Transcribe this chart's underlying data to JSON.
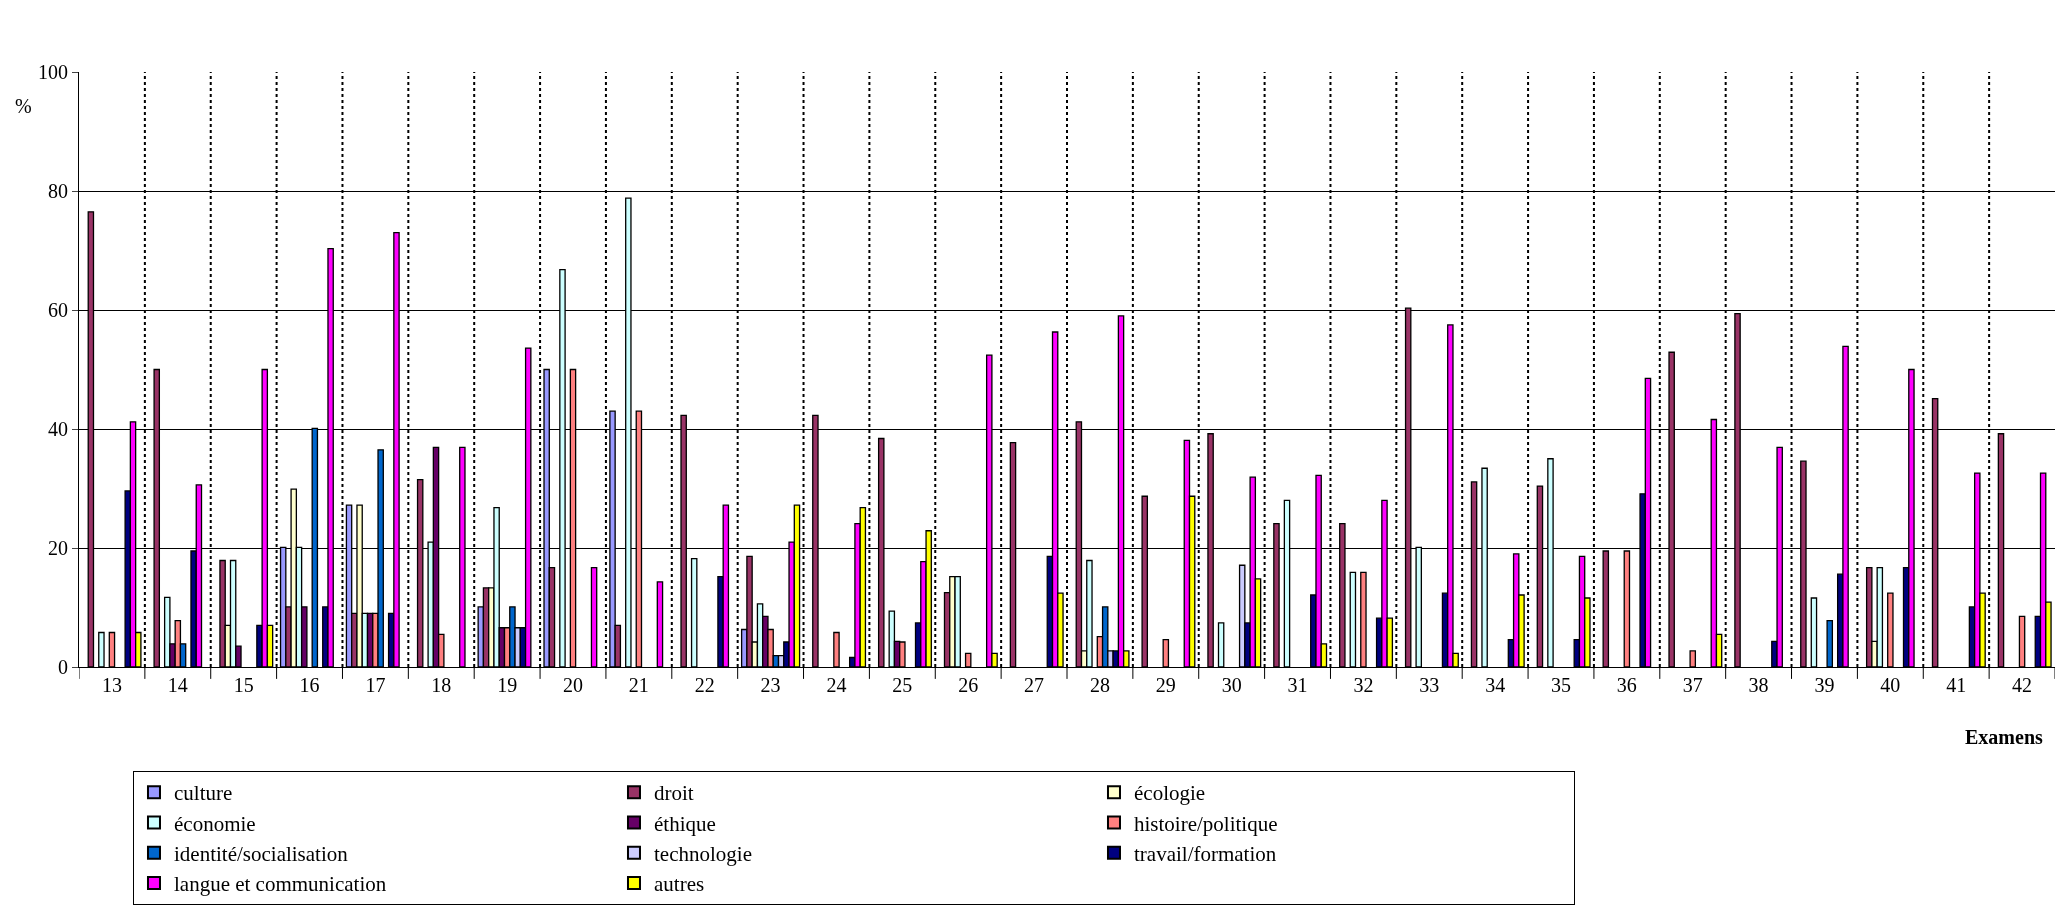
{
  "chart_data": {
    "type": "bar",
    "xlabel": "Examens",
    "ylabel": "%",
    "categories": [
      "13",
      "14",
      "15",
      "16",
      "17",
      "18",
      "19",
      "20",
      "21",
      "22",
      "23",
      "24",
      "25",
      "26",
      "27",
      "28",
      "29",
      "30",
      "31",
      "32",
      "33",
      "34",
      "35",
      "36",
      "37",
      "38",
      "39",
      "40",
      "41",
      "42"
    ],
    "ylim": [
      0,
      100
    ],
    "yticks": [
      0,
      20,
      40,
      60,
      80,
      100
    ],
    "grid": true,
    "legend": "bottom",
    "series": [
      {
        "name": "culture",
        "color": "#9999ff",
        "values": [
          null,
          null,
          null,
          20.1,
          27.2,
          null,
          10.1,
          50.0,
          43.0,
          null,
          6.3,
          null,
          null,
          null,
          null,
          null,
          null,
          null,
          null,
          null,
          null,
          null,
          null,
          null,
          null,
          null,
          null,
          null,
          null,
          null
        ]
      },
      {
        "name": "droit",
        "color": "#993366",
        "values": [
          76.5,
          50.0,
          17.9,
          10.1,
          9.0,
          31.5,
          13.3,
          16.7,
          7.0,
          42.3,
          18.6,
          42.3,
          38.4,
          12.5,
          37.7,
          41.2,
          28.7,
          39.2,
          24.1,
          24.1,
          60.3,
          31.1,
          30.4,
          19.5,
          52.9,
          59.4,
          34.6,
          16.7,
          45.1,
          39.2
        ]
      },
      {
        "name": "écologie",
        "color": "#ffffcc",
        "values": [
          null,
          null,
          7.0,
          29.9,
          27.2,
          null,
          13.3,
          null,
          null,
          null,
          4.2,
          null,
          null,
          15.2,
          null,
          2.7,
          null,
          null,
          null,
          null,
          null,
          null,
          null,
          null,
          null,
          null,
          null,
          4.3,
          null,
          null
        ]
      },
      {
        "name": "économie",
        "color": "#ccffff",
        "values": [
          5.8,
          11.7,
          17.9,
          20.1,
          9.0,
          21.0,
          26.8,
          66.8,
          78.8,
          18.2,
          10.6,
          null,
          9.4,
          15.2,
          null,
          17.9,
          null,
          7.4,
          28.0,
          15.9,
          20.1,
          33.4,
          35.0,
          null,
          null,
          null,
          11.6,
          16.7,
          null,
          null
        ]
      },
      {
        "name": "éthique",
        "color": "#660066",
        "values": [
          null,
          3.9,
          3.5,
          10.1,
          9.0,
          36.9,
          6.6,
          null,
          null,
          null,
          8.5,
          null,
          4.3,
          null,
          null,
          null,
          null,
          null,
          null,
          null,
          null,
          null,
          null,
          null,
          null,
          null,
          null,
          null,
          null,
          null
        ]
      },
      {
        "name": "histoire/politique",
        "color": "#ff8080",
        "values": [
          5.8,
          7.8,
          null,
          null,
          9.0,
          5.5,
          6.6,
          50.0,
          43.0,
          null,
          6.3,
          5.8,
          4.2,
          2.3,
          null,
          5.1,
          4.6,
          null,
          null,
          15.9,
          null,
          null,
          null,
          19.5,
          2.7,
          null,
          null,
          12.4,
          null,
          8.5
        ]
      },
      {
        "name": "identité/socialisation",
        "color": "#0066cc",
        "values": [
          null,
          3.9,
          null,
          40.1,
          36.5,
          null,
          10.1,
          null,
          null,
          null,
          1.9,
          null,
          null,
          null,
          null,
          10.1,
          null,
          null,
          null,
          null,
          null,
          null,
          null,
          null,
          null,
          null,
          7.8,
          null,
          null,
          null
        ]
      },
      {
        "name": "technologie",
        "color": "#ccccff",
        "values": [
          null,
          null,
          null,
          null,
          null,
          null,
          6.6,
          null,
          null,
          null,
          1.9,
          null,
          null,
          null,
          null,
          2.7,
          null,
          17.1,
          null,
          null,
          null,
          null,
          null,
          null,
          null,
          null,
          null,
          null,
          null,
          null
        ]
      },
      {
        "name": "travail/formation",
        "color": "#000080",
        "values": [
          29.6,
          19.5,
          7.0,
          10.1,
          9.0,
          null,
          6.6,
          null,
          null,
          15.2,
          4.2,
          1.6,
          7.4,
          null,
          18.6,
          2.7,
          null,
          7.4,
          12.1,
          8.2,
          12.4,
          4.6,
          4.6,
          29.1,
          null,
          4.3,
          15.6,
          16.7,
          10.1,
          8.5
        ]
      },
      {
        "name": "langue et communication",
        "color": "#ff00ff",
        "values": [
          41.2,
          30.6,
          50.0,
          70.3,
          73.0,
          36.9,
          53.6,
          16.7,
          14.3,
          27.2,
          21.0,
          24.1,
          17.7,
          52.4,
          56.3,
          59.0,
          38.1,
          31.9,
          32.2,
          28.0,
          57.5,
          19.0,
          18.6,
          48.5,
          41.6,
          36.9,
          53.9,
          50.0,
          32.6,
          32.6
        ]
      },
      {
        "name": "autres",
        "color": "#ffff00",
        "values": [
          5.8,
          null,
          7.0,
          null,
          null,
          null,
          null,
          null,
          null,
          null,
          27.2,
          26.8,
          22.9,
          2.3,
          12.4,
          2.7,
          28.7,
          14.8,
          3.9,
          8.2,
          2.3,
          12.1,
          11.6,
          null,
          5.5,
          null,
          null,
          null,
          12.4,
          10.9
        ]
      }
    ]
  }
}
